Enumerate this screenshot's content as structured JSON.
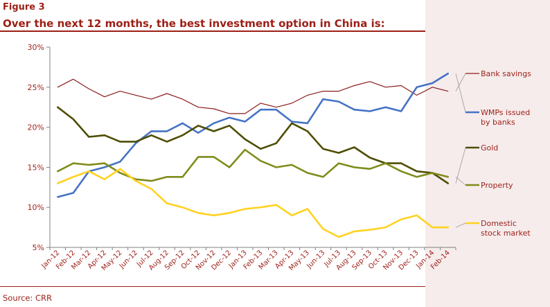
{
  "figure_label": "Figure 3",
  "figure_title": "Over the next 12 months, the best investment option in China is:",
  "source": "Source: CRR",
  "colors": {
    "brand": "#9c1f16",
    "axis_text": "#9c1f16",
    "bank_savings": "#8b1a1a",
    "wmps": "#4472c4",
    "gold": "#4d4d00",
    "property": "#7f8c1a",
    "domestic": "#ffd21f"
  },
  "chart_data": {
    "type": "line",
    "title": "Over the next 12 months, the best investment option in China is:",
    "xlabel": "",
    "ylabel": "",
    "ylim": [
      5,
      30
    ],
    "yticks": [
      "5%",
      "10%",
      "15%",
      "20%",
      "25%",
      "30%"
    ],
    "grid": false,
    "legend_position": "right",
    "categories": [
      "Jan-12",
      "Feb-12",
      "Mar-12",
      "Apr-12",
      "May-12",
      "Jun-12",
      "Jul-12",
      "Aug-12",
      "Sep-12",
      "Oct-12",
      "Nov-12",
      "Dec-12",
      "Jan-13",
      "Feb-13",
      "Mar-13",
      "Apr-13",
      "May-13",
      "Jun-13",
      "Jul-13",
      "Aug-13",
      "Sep-13",
      "Oct-13",
      "Nov-13",
      "Dec-13",
      "Jan-14",
      "Feb-14"
    ],
    "series": [
      {
        "key": "bank_savings",
        "name": "Bank savings",
        "width": 1.2,
        "values": [
          25.0,
          26.0,
          24.8,
          23.8,
          24.5,
          24.0,
          23.5,
          24.2,
          23.5,
          22.5,
          22.3,
          21.7,
          21.7,
          23.0,
          22.5,
          23.0,
          24.0,
          24.5,
          24.5,
          25.2,
          25.7,
          25.0,
          25.2,
          24.0,
          25.0,
          24.5
        ]
      },
      {
        "key": "wmps",
        "name": "WMPs issued by banks",
        "width": 2.6,
        "values": [
          11.3,
          11.8,
          14.5,
          15.0,
          15.7,
          18.0,
          19.5,
          19.5,
          20.5,
          19.3,
          20.5,
          21.2,
          20.7,
          22.2,
          22.2,
          20.7,
          20.5,
          23.5,
          23.2,
          22.2,
          22.0,
          22.5,
          22.0,
          25.0,
          25.5,
          26.7
        ]
      },
      {
        "key": "gold",
        "name": "Gold",
        "width": 2.6,
        "values": [
          22.5,
          21.0,
          18.8,
          19.0,
          18.2,
          18.2,
          19.0,
          18.2,
          19.0,
          20.2,
          19.5,
          20.2,
          18.5,
          17.3,
          18.0,
          20.5,
          19.5,
          17.3,
          16.8,
          17.5,
          16.2,
          15.5,
          15.5,
          14.5,
          14.3,
          13.0
        ]
      },
      {
        "key": "property",
        "name": "Property",
        "width": 2.6,
        "values": [
          14.5,
          15.5,
          15.3,
          15.5,
          14.3,
          13.5,
          13.3,
          13.8,
          13.8,
          16.3,
          16.3,
          15.0,
          17.2,
          15.8,
          15.0,
          15.3,
          14.3,
          13.8,
          15.5,
          15.0,
          14.8,
          15.5,
          14.5,
          13.8,
          14.3,
          13.8
        ]
      },
      {
        "key": "domestic",
        "name": "Domestic stock market",
        "width": 2.6,
        "values": [
          13.0,
          13.8,
          14.5,
          13.5,
          14.8,
          13.3,
          12.3,
          10.5,
          10.0,
          9.3,
          9.0,
          9.3,
          9.8,
          10.0,
          10.3,
          9.0,
          9.8,
          7.3,
          6.3,
          7.0,
          7.2,
          7.5,
          8.5,
          9.0,
          7.5,
          7.5
        ]
      }
    ],
    "legend": [
      {
        "key": "bank_savings",
        "lines": [
          "Bank savings"
        ]
      },
      {
        "key": "wmps",
        "lines": [
          "WMPs issued",
          "by banks"
        ]
      },
      {
        "key": "gold",
        "lines": [
          "Gold"
        ]
      },
      {
        "key": "property",
        "lines": [
          "Property"
        ]
      },
      {
        "key": "domestic",
        "lines": [
          "Domestic",
          "stock market"
        ]
      }
    ]
  }
}
